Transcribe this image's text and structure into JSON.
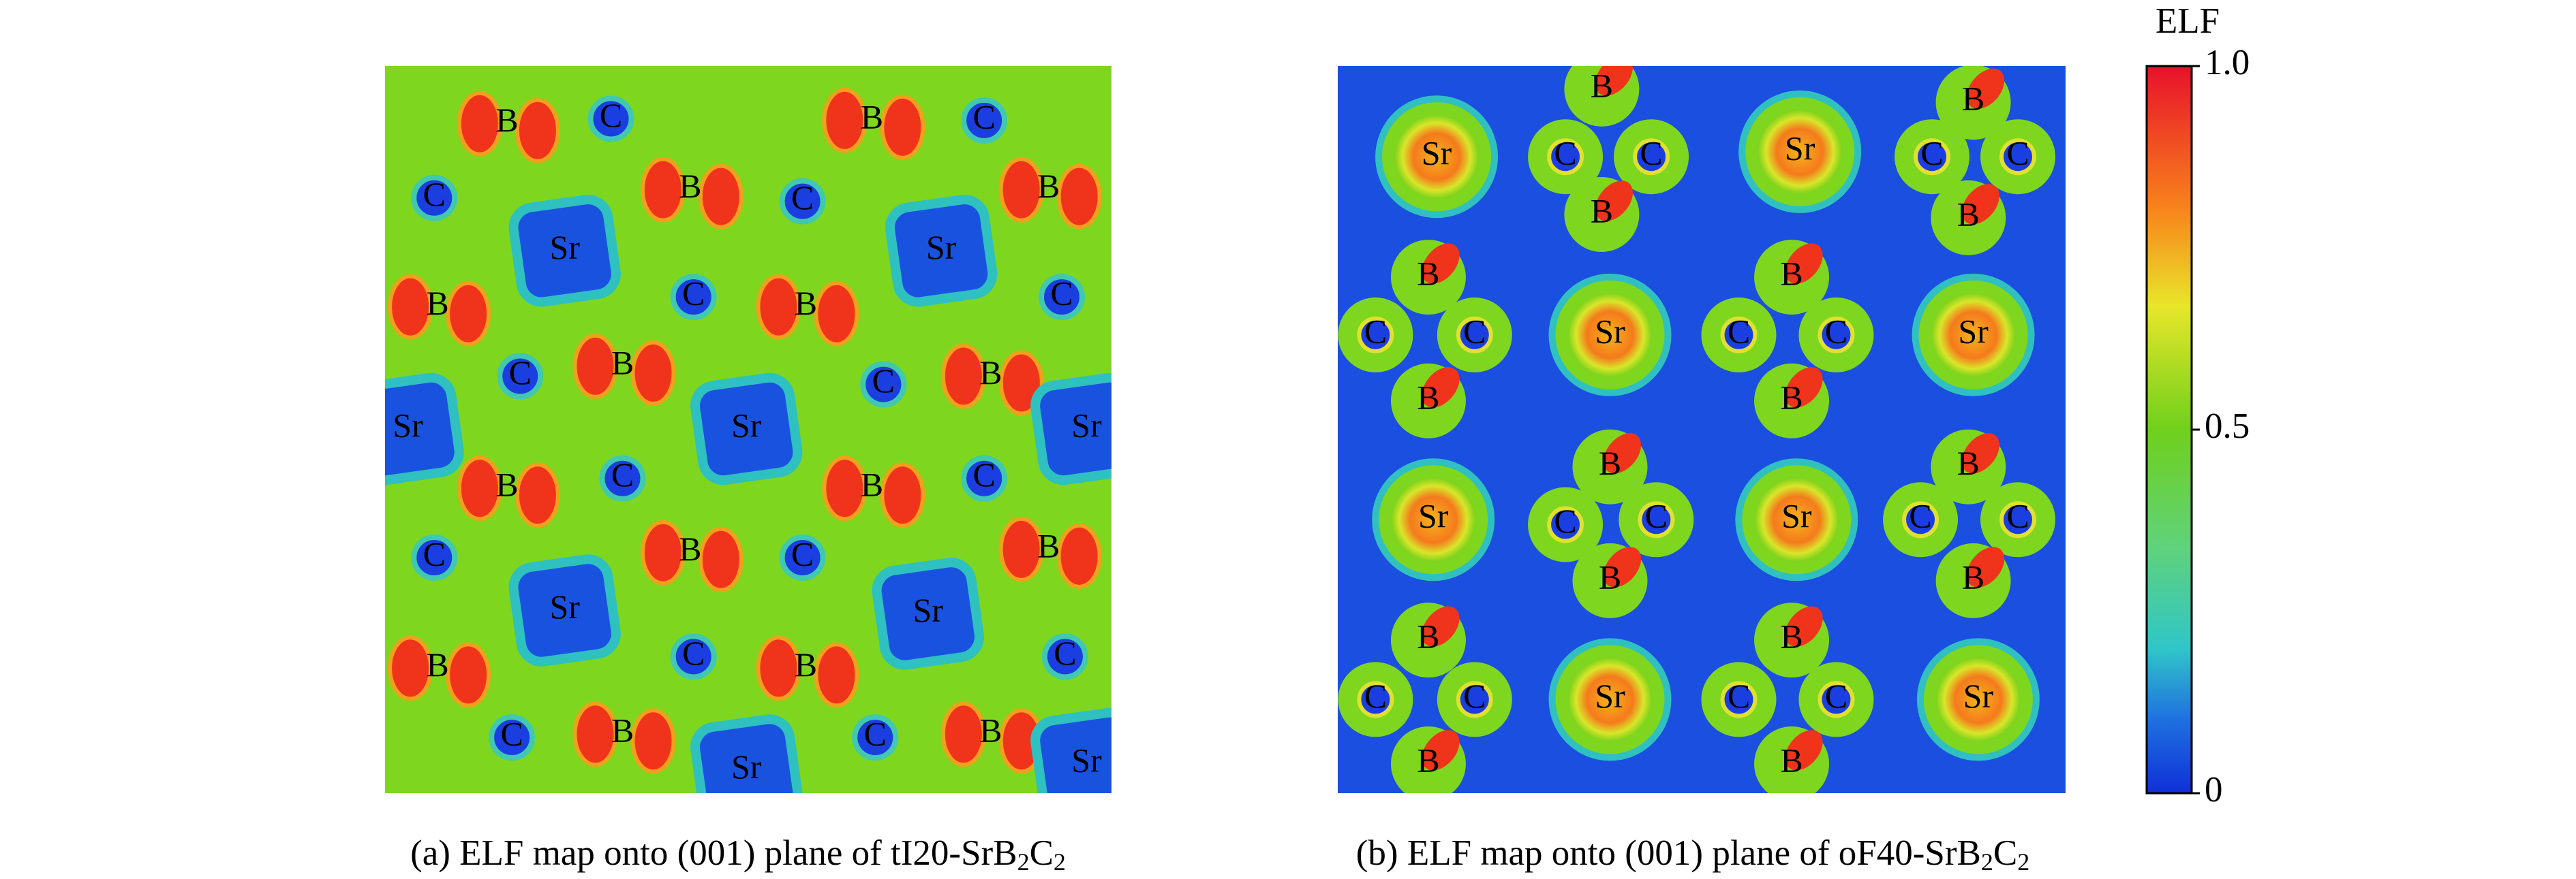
{
  "colorbar": {
    "title": "ELF",
    "ticks": [
      {
        "value": 1,
        "label": "1.0"
      },
      {
        "value": 0.5,
        "label": "0.5"
      },
      0
    ]
  },
  "panels": [
    {
      "caption": [
        "(a) ELF map onto (001) plane of tI20-SrB",
        "2",
        "C",
        "2"
      ],
      "atoms": [
        "B",
        "C",
        "B",
        "C",
        "C",
        "B",
        "C",
        "B",
        "Sr",
        "Sr",
        "B",
        "C",
        "B",
        "C",
        "C",
        "B",
        "C",
        "B",
        "Sr",
        "Sr",
        "Sr",
        "B",
        "C",
        "B",
        "C",
        "C",
        "B",
        "C",
        "B",
        "Sr",
        "Sr",
        "B",
        "C",
        "B",
        "C",
        "C",
        "B",
        "C",
        "B",
        "Sr",
        "Sr"
      ]
    },
    {
      "caption": [
        "(b) ELF map onto (001) plane of oF40-SrB",
        "2",
        "C",
        "2"
      ],
      "atoms": [
        "B",
        "B",
        "Sr",
        "Sr",
        "C",
        "C",
        "C",
        "C",
        "B",
        "B",
        "B",
        "B",
        "Sr",
        "Sr",
        "C",
        "C",
        "C",
        "C",
        "B",
        "B",
        "B",
        "B",
        "Sr",
        "Sr",
        "C",
        "C",
        "C",
        "C",
        "B",
        "B",
        "B",
        "B",
        "Sr",
        "Sr",
        "C",
        "C",
        "C",
        "C",
        "B",
        "B"
      ]
    }
  ]
}
